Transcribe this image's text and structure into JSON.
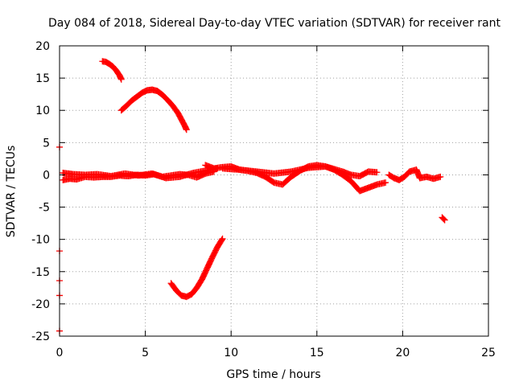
{
  "chart_data": {
    "type": "scatter",
    "title": "Day 084 of 2018, Sidereal Day-to-day VTEC variation (SDTVAR) for receiver rant",
    "xlabel": "GPS time / hours",
    "ylabel": "SDTVAR / TECUs",
    "xlim": [
      0,
      25
    ],
    "ylim": [
      -25,
      20
    ],
    "xticks": [
      0,
      5,
      10,
      15,
      20,
      25
    ],
    "yticks": [
      -25,
      -20,
      -15,
      -10,
      -5,
      0,
      5,
      10,
      15,
      20
    ],
    "xtick_labels": [
      "0",
      "5",
      "10",
      "15",
      "20",
      "25"
    ],
    "ytick_labels": [
      "-25",
      "-20",
      "-15",
      "-10",
      "-5",
      "0",
      "5",
      "10",
      "15",
      "20"
    ],
    "grid": true,
    "legend": "none",
    "marker": "+",
    "colors": {
      "series": "#ff0000",
      "grid": "#a0a0a0",
      "axis": "#000000"
    },
    "series": [
      {
        "name": "arc-upper-left",
        "x": [
          2.5,
          2.7,
          2.9,
          3.1,
          3.3,
          3.5,
          3.6
        ],
        "y": [
          17.6,
          17.5,
          17.2,
          16.8,
          16.2,
          15.4,
          14.8
        ]
      },
      {
        "name": "arc-upper-middle",
        "x": [
          3.6,
          3.9,
          4.2,
          4.5,
          4.8,
          5.1,
          5.4,
          5.7,
          6.0,
          6.3,
          6.6,
          6.9,
          7.1,
          7.3,
          7.4
        ],
        "y": [
          10.0,
          10.7,
          11.5,
          12.1,
          12.7,
          13.1,
          13.2,
          13.0,
          12.4,
          11.6,
          10.7,
          9.6,
          8.6,
          7.6,
          7.0
        ]
      },
      {
        "name": "baseline-left",
        "x": [
          0.2,
          0.6,
          1.0,
          1.5,
          2.0,
          2.5,
          3.0,
          3.5,
          4.0,
          4.5,
          5.0,
          5.5,
          6.0,
          6.5,
          7.0,
          7.5,
          8.0,
          8.5,
          9.0
        ],
        "y": [
          -0.8,
          -0.6,
          -0.7,
          -0.3,
          -0.4,
          -0.3,
          -0.3,
          -0.1,
          -0.2,
          0.0,
          -0.1,
          0.1,
          -0.3,
          -0.1,
          0.1,
          0.0,
          -0.4,
          0.2,
          0.5
        ]
      },
      {
        "name": "baseline-left-b",
        "x": [
          0.2,
          0.8,
          1.5,
          2.2,
          3.0,
          3.8,
          4.6,
          5.4,
          6.2,
          7.0,
          7.8,
          8.6,
          9.2
        ],
        "y": [
          0.3,
          0.1,
          0.0,
          0.1,
          -0.2,
          0.2,
          -0.1,
          0.2,
          -0.5,
          -0.3,
          0.3,
          0.7,
          1.0
        ]
      },
      {
        "name": "baseline-middle",
        "x": [
          8.5,
          9.0,
          9.5,
          10.0,
          10.5,
          11.0,
          11.5,
          12.0,
          12.5,
          13.0,
          13.5,
          14.0,
          14.5,
          15.0,
          15.5,
          16.0,
          16.5,
          17.0,
          17.5,
          18.0,
          18.5,
          19.0
        ],
        "y": [
          1.5,
          1.0,
          1.2,
          1.3,
          0.8,
          0.6,
          0.3,
          -0.3,
          -1.2,
          -1.5,
          -0.3,
          0.6,
          1.3,
          1.5,
          1.3,
          0.8,
          0.0,
          -1.0,
          -2.5,
          -2.0,
          -1.5,
          -1.2
        ]
      },
      {
        "name": "baseline-middle-b",
        "x": [
          9.5,
          10.5,
          11.5,
          12.5,
          13.5,
          14.5,
          15.5,
          16.5,
          17.0,
          17.5,
          18.0,
          18.5
        ],
        "y": [
          1.0,
          0.8,
          0.5,
          0.2,
          0.5,
          1.1,
          1.3,
          0.5,
          0.0,
          -0.2,
          0.5,
          0.4
        ]
      },
      {
        "name": "baseline-right",
        "x": [
          19.2,
          19.5,
          19.8,
          20.1,
          20.4,
          20.8,
          21.0,
          21.4,
          21.8,
          22.2
        ],
        "y": [
          0.0,
          -0.5,
          -0.8,
          -0.3,
          0.5,
          0.8,
          -0.5,
          -0.3,
          -0.6,
          -0.3
        ]
      },
      {
        "name": "arc-lower",
        "x": [
          6.5,
          6.8,
          7.1,
          7.4,
          7.7,
          8.0,
          8.3,
          8.6,
          8.9,
          9.2,
          9.5
        ],
        "y": [
          -16.8,
          -17.9,
          -18.7,
          -18.9,
          -18.5,
          -17.5,
          -16.2,
          -14.5,
          -12.8,
          -11.2,
          -9.9
        ]
      },
      {
        "name": "short-right",
        "x": [
          22.3,
          22.45
        ],
        "y": [
          -6.6,
          -7.0
        ]
      },
      {
        "name": "isolated-left",
        "x": [
          0.0,
          0.0,
          0.0,
          0.0,
          0.0
        ],
        "y": [
          4.3,
          -11.8,
          -16.4,
          -18.7,
          -24.2
        ]
      }
    ]
  }
}
